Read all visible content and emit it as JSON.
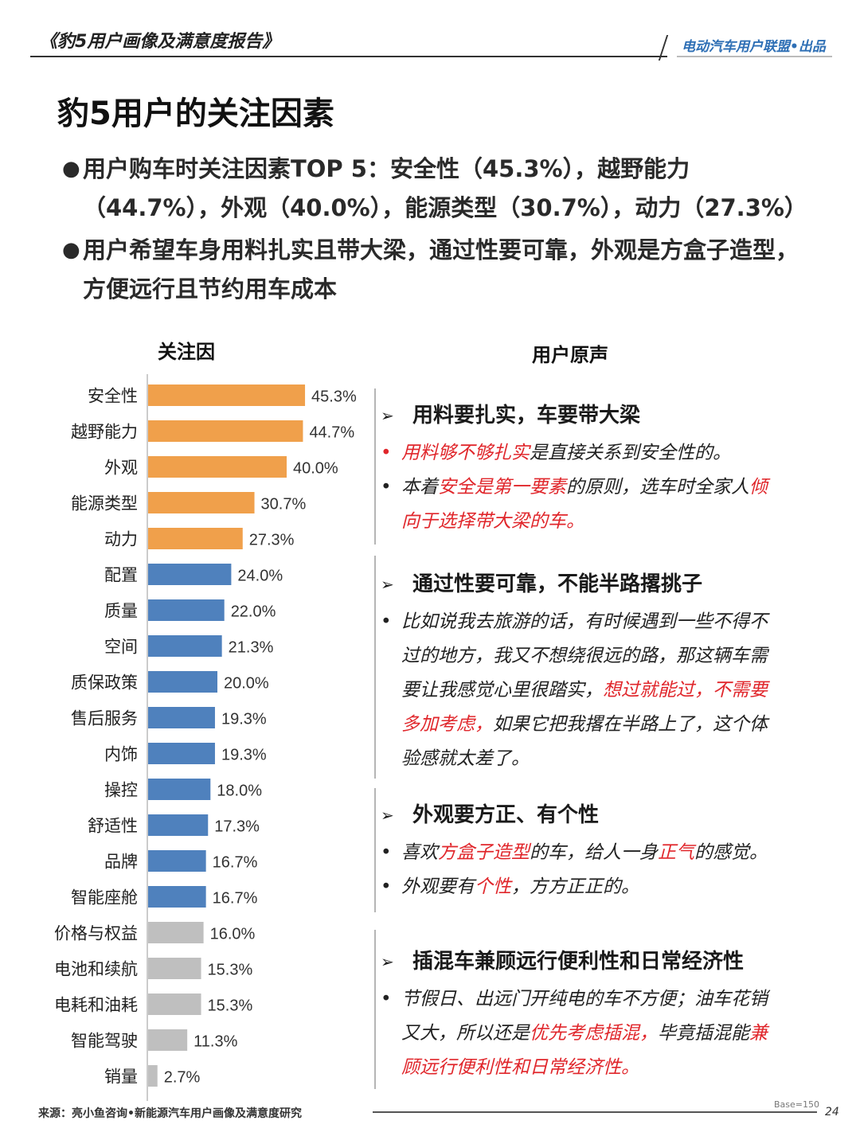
{
  "header": {
    "report": "《豹5用户画像及满意度报告》",
    "brand": "电动汽车用户联盟•出品"
  },
  "title": "豹5用户的关注因素",
  "bullets": [
    {
      "parts": [
        {
          "t": "用户购车时关注因素TOP 5：安全性（45.3%），越野能力（44.7%），外观（40.0%），能源类型（30.7%），动力（27.3%）",
          "red": false
        }
      ]
    },
    {
      "parts": [
        {
          "t": "用户希望车身用料扎实且带大梁，通过性要可靠，外观是方盒子造型，方便远行且节约用车成本",
          "red": false
        }
      ]
    }
  ],
  "chart_title": "关注因",
  "chart_data": {
    "type": "bar",
    "orientation": "horizontal",
    "categories": [
      "安全性",
      "越野能力",
      "外观",
      "能源类型",
      "动力",
      "配置",
      "质量",
      "空间",
      "质保政策",
      "售后服务",
      "内饰",
      "操控",
      "舒适性",
      "品牌",
      "智能座舱",
      "价格与权益",
      "电池和续航",
      "电耗和油耗",
      "智能驾驶",
      "销量"
    ],
    "values": [
      45.3,
      44.7,
      40.0,
      30.7,
      27.3,
      24.0,
      22.0,
      21.3,
      20.0,
      19.3,
      19.3,
      18.0,
      17.3,
      16.7,
      16.7,
      16.0,
      15.3,
      15.3,
      11.3,
      2.7
    ],
    "value_labels": [
      "45.3%",
      "44.7%",
      "40.0%",
      "30.7%",
      "27.3%",
      "24.0%",
      "22.0%",
      "21.3%",
      "20.0%",
      "19.3%",
      "19.3%",
      "18.0%",
      "17.3%",
      "16.7%",
      "16.7%",
      "16.0%",
      "15.3%",
      "15.3%",
      "11.3%",
      "2.7%"
    ],
    "groups": [
      "top",
      "top",
      "top",
      "top",
      "top",
      "mid",
      "mid",
      "mid",
      "mid",
      "mid",
      "mid",
      "mid",
      "mid",
      "mid",
      "mid",
      "low",
      "low",
      "low",
      "low",
      "low"
    ],
    "colors": {
      "top": "#f0a04b",
      "mid": "#4f81bd",
      "low": "#bfbfbf"
    },
    "xlim": [
      0,
      50
    ],
    "grid": false
  },
  "voice": {
    "title": "用户原声",
    "sections": [
      {
        "heading": "用料要扎实，车要带大梁",
        "items": [
          {
            "bullet_red": true,
            "parts": [
              {
                "t": "用料够不够扎实",
                "red": true
              },
              {
                "t": "是直接关系到安全性的。",
                "red": false
              }
            ]
          },
          {
            "bullet_red": false,
            "parts": [
              {
                "t": "本着",
                "red": false
              },
              {
                "t": "安全是第一要素",
                "red": true
              },
              {
                "t": "的原则，选车时全家人",
                "red": false
              },
              {
                "t": "倾向于选择带大梁的车。",
                "red": true
              }
            ]
          }
        ]
      },
      {
        "heading": "通过性要可靠，不能半路撂挑子",
        "items": [
          {
            "bullet_red": false,
            "parts": [
              {
                "t": "比如说我去旅游的话，有时候遇到一些不得不过的地方，我又不想绕很远的路，那这辆车需要让我感觉心里很踏实，",
                "red": false
              },
              {
                "t": "想过就能过，不需要多加考虑，",
                "red": true
              },
              {
                "t": "如果它把我撂在半路上了，这个体验感就太差了。",
                "red": false
              }
            ]
          }
        ]
      },
      {
        "heading": "外观要方正、有个性",
        "items": [
          {
            "bullet_red": false,
            "parts": [
              {
                "t": "喜欢",
                "red": false
              },
              {
                "t": "方盒子造型",
                "red": true
              },
              {
                "t": "的车，给人一身",
                "red": false
              },
              {
                "t": "正气",
                "red": true
              },
              {
                "t": "的感觉。",
                "red": false
              }
            ]
          },
          {
            "bullet_red": false,
            "parts": [
              {
                "t": "外观要有",
                "red": false
              },
              {
                "t": "个性",
                "red": true
              },
              {
                "t": "，方方正正的。",
                "red": false
              }
            ]
          }
        ]
      },
      {
        "heading": "插混车兼顾远行便利性和日常经济性",
        "items": [
          {
            "bullet_red": false,
            "parts": [
              {
                "t": "节假日、出远门开纯电的车不方便；油车花销又大，所以还是",
                "red": false
              },
              {
                "t": "优先考虑插混，",
                "red": true
              },
              {
                "t": "毕竟插混能",
                "red": false
              },
              {
                "t": "兼顾远行便利性和日常经济性。",
                "red": true
              }
            ]
          }
        ]
      }
    ]
  },
  "footer": {
    "source": "来源：亮小鱼咨询•新能源汽车用户画像及满意度研究",
    "base": "Base=150",
    "page": "24"
  }
}
